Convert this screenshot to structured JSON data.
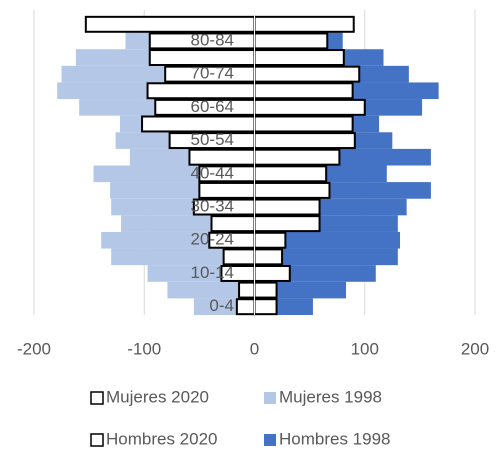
{
  "chart_data": {
    "type": "bar",
    "orientation": "horizontal",
    "stacked": false,
    "categories": [
      "0-4",
      null,
      "10-14",
      null,
      "20-24",
      null,
      "30-34",
      null,
      "40-44",
      null,
      "50-54",
      null,
      "60-64",
      null,
      "70-74",
      null,
      "80-84",
      null
    ],
    "series": [
      {
        "name": "Mujeres 2020",
        "color": "#ffffff",
        "outline": "#000000",
        "values": [
          -16,
          -14,
          -30,
          -28,
          -41,
          -39,
          -55,
          -50,
          -50,
          -59,
          -77,
          -102,
          -90,
          -97,
          -81,
          -95,
          -95,
          -153
        ]
      },
      {
        "name": "Mujeres 1998",
        "color": "#b4c7e7",
        "values": [
          -55,
          -79,
          -97,
          -130,
          -139,
          -121,
          -130,
          -131,
          -146,
          -113,
          -126,
          -122,
          -159,
          -179,
          -175,
          -162,
          -117,
          -86
        ]
      },
      {
        "name": "Hombres 2020",
        "color": "#ffffff",
        "outline": "#000000",
        "values": [
          20,
          20,
          32,
          25,
          28,
          59,
          59,
          68,
          65,
          77,
          91,
          89,
          100,
          89,
          95,
          81,
          66,
          90
        ]
      },
      {
        "name": "Hombres 1998",
        "color": "#4472c4",
        "values": [
          53,
          83,
          110,
          130,
          132,
          130,
          138,
          160,
          120,
          160,
          125,
          113,
          152,
          167,
          140,
          117,
          80,
          68
        ]
      }
    ],
    "xlim": [
      -200,
      200
    ],
    "xticks": [
      -200,
      -100,
      0,
      100,
      200
    ],
    "grid": true,
    "legend": "bottom"
  }
}
